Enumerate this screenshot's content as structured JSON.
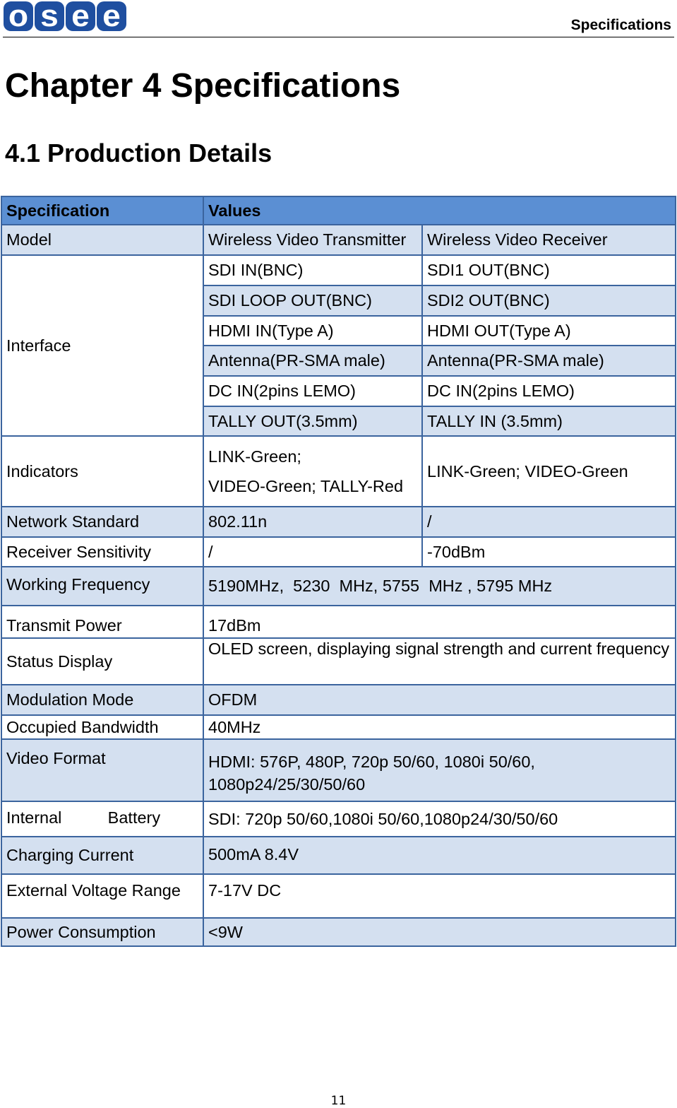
{
  "header": {
    "logo": "OSEE",
    "section": "Specifications"
  },
  "chapter_title": "Chapter 4 Specifications",
  "section_title": "4.1 Production Details",
  "table": {
    "headers": [
      "Specification",
      "Values"
    ],
    "model": {
      "label": "Model",
      "tx": "Wireless Video Transmitter",
      "rx": "Wireless Video Receiver"
    },
    "interface": {
      "label": "Interface",
      "rows": [
        [
          "SDI IN(BNC)",
          "SDI1 OUT(BNC)"
        ],
        [
          "SDI LOOP OUT(BNC)",
          "SDI2 OUT(BNC)"
        ],
        [
          "HDMI IN(Type A)",
          "HDMI OUT(Type A)"
        ],
        [
          "Antenna(PR-SMA male)",
          "Antenna(PR-SMA male)"
        ],
        [
          "DC IN(2pins LEMO)",
          "DC IN(2pins LEMO)"
        ],
        [
          "TALLY OUT(3.5mm)",
          "TALLY IN (3.5mm)"
        ]
      ]
    },
    "indicators": {
      "label": "Indicators",
      "tx1": "LINK-Green;",
      "tx2": "VIDEO-Green; TALLY-Red",
      "rx": "LINK-Green; VIDEO-Green"
    },
    "network": {
      "label": "Network Standard",
      "tx": "802.11n",
      "rx": "/"
    },
    "sensitivity": {
      "label": "Receiver Sensitivity",
      "tx": "/",
      "rx": "-70dBm"
    },
    "rows": [
      {
        "label": "Working Frequency",
        "value": "5190MHz,  5230  MHz, 5755  MHz , 5795 MHz"
      },
      {
        "label": "Transmit Power",
        "value": "17dBm"
      },
      {
        "label": "Status Display",
        "value": "OLED screen, displaying signal strength and current frequency"
      },
      {
        "label": "Modulation Mode",
        "value": "OFDM"
      },
      {
        "label": "Occupied Bandwidth",
        "value": "40MHz"
      },
      {
        "label": "Video Format",
        "value": "HDMI: 576P, 480P, 720p 50/60, 1080i 50/60, 1080p24/25/30/50/60"
      },
      {
        "label": "Internal          Battery",
        "value": "SDI: 720p 50/60,1080i 50/60,1080p24/30/50/60"
      },
      {
        "label": "Charging Current",
        "value": "500mA 8.4V"
      },
      {
        "label": "External Voltage Range",
        "value": "7-17V DC"
      },
      {
        "label": "Power Consumption",
        "value": "<9W"
      }
    ]
  },
  "page_number": "11"
}
